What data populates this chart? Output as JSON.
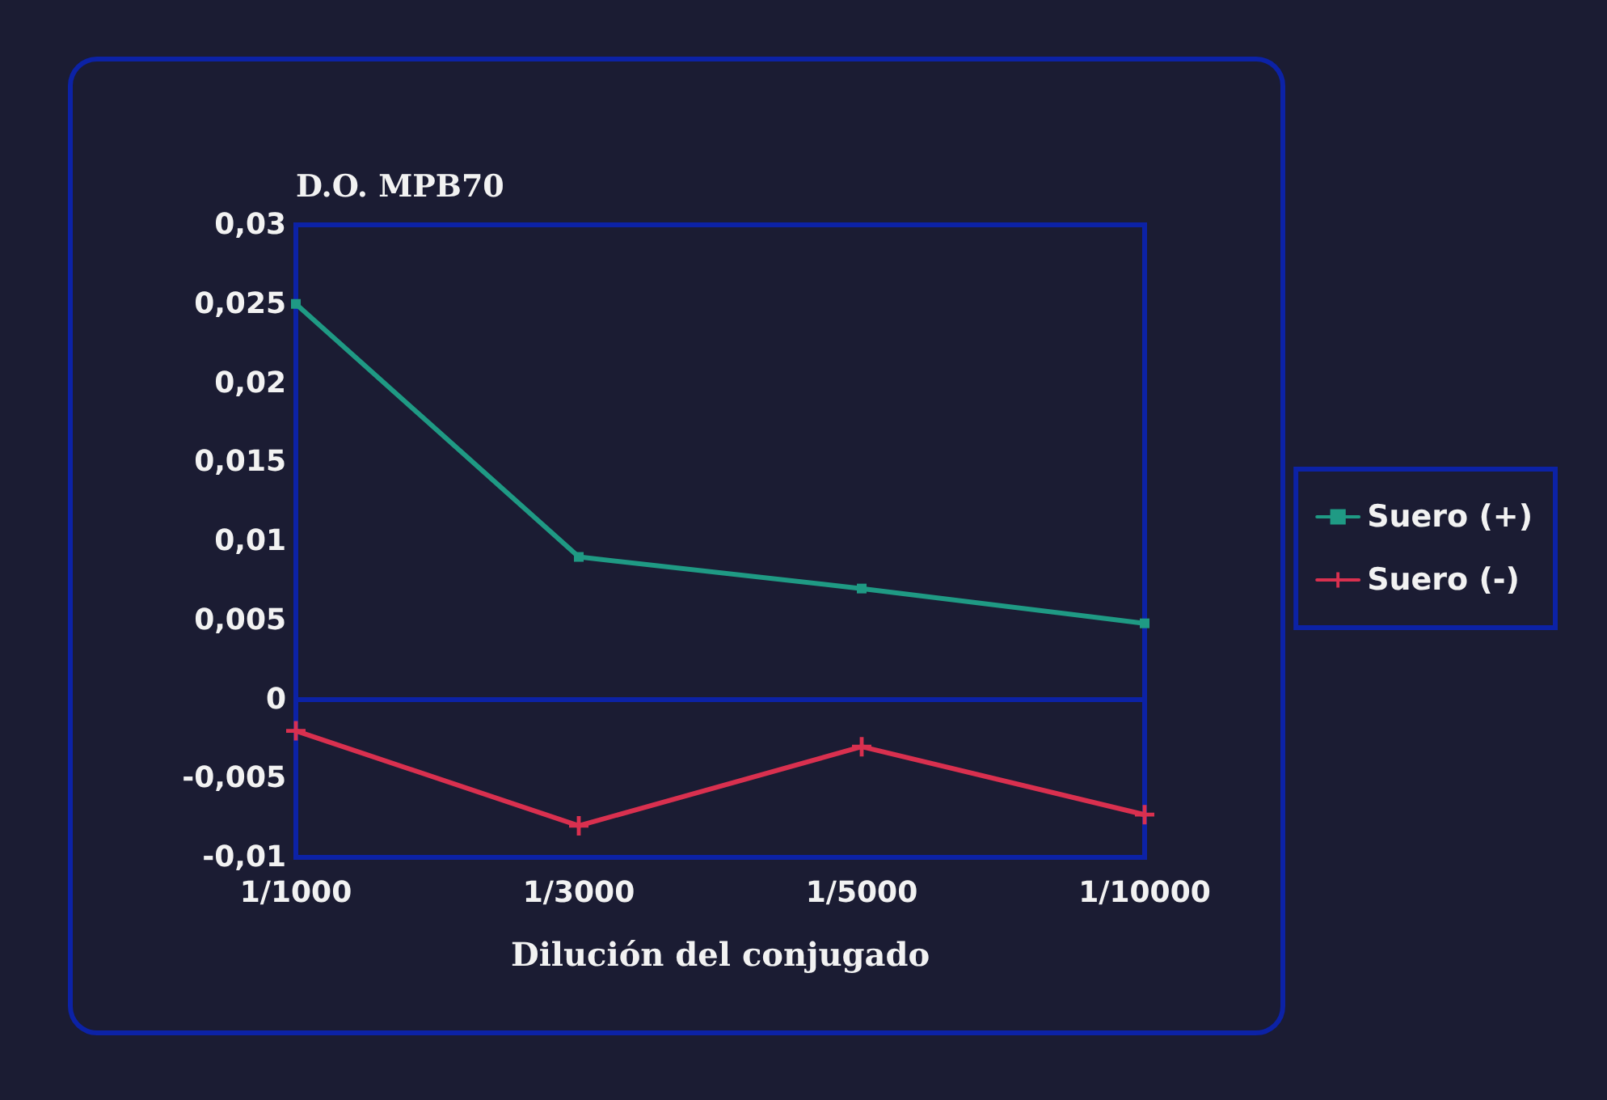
{
  "chart_data": {
    "type": "line",
    "ylabel": "D.O. MPB70",
    "xlabel": "Dilución del conjugado",
    "categories": [
      "1/1000",
      "1/3000",
      "1/5000",
      "1/10000"
    ],
    "series": [
      {
        "name": "Suero (+)",
        "color": "#1f9a84",
        "marker": "square",
        "values": [
          0.025,
          0.009,
          0.007,
          0.0048
        ]
      },
      {
        "name": "Suero (-)",
        "color": "#d9304f",
        "marker": "cross",
        "values": [
          -0.002,
          -0.008,
          -0.003,
          -0.0073
        ]
      }
    ],
    "ylim": [
      -0.01,
      0.03
    ],
    "yticks": [
      {
        "value": -0.01,
        "label": "-0,01"
      },
      {
        "value": -0.005,
        "label": "-0,005"
      },
      0,
      {
        "value": 0.005,
        "label": "0,005"
      },
      {
        "value": 0.01,
        "label": "0,01"
      },
      {
        "value": 0.015,
        "label": "0,015"
      },
      {
        "value": 0.02,
        "label": "0,02"
      },
      {
        "value": 0.025,
        "label": "0,025"
      },
      {
        "value": 0.03,
        "label": "0,03"
      }
    ],
    "ref_lines": [
      {
        "axis": "y",
        "value": 0,
        "color": "#0c22a6"
      }
    ],
    "line_style": "solid",
    "legend": "right"
  }
}
